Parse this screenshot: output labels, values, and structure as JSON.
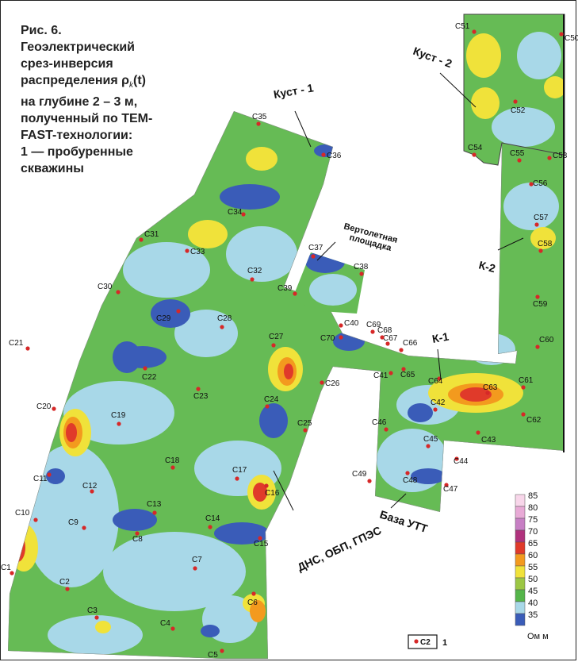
{
  "caption": {
    "fig_label": "Рис. 6.",
    "lines": [
      "Геоэлектрический",
      "срез-инверсия",
      "распределения ρ",
      "на глубине 2 – 3 м,",
      "полученный по ТЕМ-",
      "FAST-технологии:",
      "1 — пробуренные",
      "скважины"
    ],
    "rho_sub": "k",
    "rho_arg": "(t)"
  },
  "area_labels": {
    "kust1": "Куст - 1",
    "kust2": "Куст - 2",
    "vertolet": "Вертолетная площадка",
    "k1": "К-1",
    "k2": "К-2",
    "baza": "База УТТ",
    "dns": "ДНС, ОБП, ГПЭС"
  },
  "wells": [
    "C1",
    "C2",
    "C3",
    "C4",
    "C5",
    "C6",
    "C7",
    "C8",
    "C9",
    "C10",
    "C11",
    "C12",
    "C13",
    "C14",
    "C15",
    "C16",
    "C17",
    "C18",
    "C19",
    "C20",
    "C21",
    "C22",
    "C23",
    "C24",
    "C25",
    "C26",
    "C27",
    "C28",
    "C29",
    "C30",
    "C31",
    "C32",
    "C33",
    "C34",
    "C35",
    "C36",
    "C37",
    "C38",
    "C39",
    "C40",
    "C41",
    "C42",
    "C43",
    "C44",
    "C45",
    "C46",
    "C47",
    "C48",
    "C49",
    "C50",
    "C51",
    "C52",
    "C53",
    "C54",
    "C55",
    "C56",
    "C57",
    "C58",
    "C59",
    "C60",
    "C61",
    "C62",
    "C63",
    "C64",
    "C65",
    "C66",
    "C67",
    "C68",
    "C69",
    "C70"
  ],
  "legend": {
    "well_label": "C2",
    "well_number": "1",
    "unit": "Ом м",
    "scale": [
      {
        "value": "85",
        "color": "#f8d6ea"
      },
      {
        "value": "80",
        "color": "#e8aad6"
      },
      {
        "value": "75",
        "color": "#c77fc4"
      },
      {
        "value": "70",
        "color": "#b0327d"
      },
      {
        "value": "65",
        "color": "#e03a2a"
      },
      {
        "value": "60",
        "color": "#f39a1e"
      },
      {
        "value": "55",
        "color": "#f0e23a"
      },
      {
        "value": "50",
        "color": "#9cc744"
      },
      {
        "value": "45",
        "color": "#55b54a"
      },
      {
        "value": "40",
        "color": "#a8d8e8"
      },
      {
        "value": "35",
        "color": "#3a5cb8"
      }
    ]
  }
}
